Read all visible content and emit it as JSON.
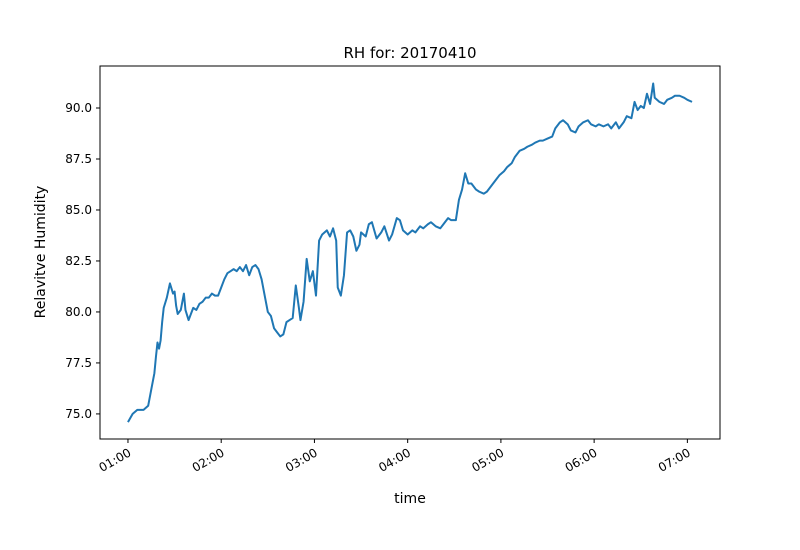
{
  "chart_data": {
    "type": "line",
    "title": "RH for: 20170410",
    "xlabel": "time",
    "ylabel": "Relavitve Humidity",
    "xlim": [
      "00:42",
      "07:21"
    ],
    "xticks": [
      "01:00",
      "02:00",
      "03:00",
      "04:00",
      "05:00",
      "06:00",
      "07:00"
    ],
    "ylim": [
      73.77,
      92.06
    ],
    "yticks": [
      {
        "value": 75,
        "label": "75.0"
      },
      77.5,
      {
        "value": 80,
        "label": "80.0"
      },
      82.5,
      {
        "value": 85,
        "label": "85.0"
      },
      87.5,
      {
        "value": 90,
        "label": "90.0"
      }
    ],
    "grid": false,
    "series": [
      {
        "name": "RH",
        "color": "#1f77b4",
        "x": [
          "01:00",
          "01:03",
          "01:06",
          "01:10",
          "01:13",
          "01:15",
          "01:17",
          "01:18",
          "01:19",
          "01:20",
          "01:21",
          "01:22",
          "01:23",
          "01:25",
          "01:27",
          "01:29",
          "01:30",
          "01:31",
          "01:32",
          "01:34",
          "01:36",
          "01:37",
          "01:39",
          "01:40",
          "01:42",
          "01:44",
          "01:46",
          "01:48",
          "01:50",
          "01:52",
          "01:54",
          "01:56",
          "01:58",
          "02:00",
          "02:02",
          "02:04",
          "02:06",
          "02:08",
          "02:10",
          "02:12",
          "02:14",
          "02:16",
          "02:18",
          "02:20",
          "02:22",
          "02:24",
          "02:26",
          "02:28",
          "02:30",
          "02:32",
          "02:34",
          "02:36",
          "02:38",
          "02:40",
          "02:42",
          "02:44",
          "02:46",
          "02:48",
          "02:50",
          "02:51",
          "02:53",
          "02:55",
          "02:57",
          "02:59",
          "03:01",
          "03:03",
          "03:05",
          "03:08",
          "03:10",
          "03:12",
          "03:14",
          "03:15",
          "03:17",
          "03:19",
          "03:21",
          "03:23",
          "03:25",
          "03:27",
          "03:29",
          "03:30",
          "03:33",
          "03:35",
          "03:37",
          "03:40",
          "03:43",
          "03:45",
          "03:48",
          "03:50",
          "03:53",
          "03:55",
          "03:57",
          "04:00",
          "04:03",
          "04:05",
          "04:08",
          "04:10",
          "04:13",
          "04:15",
          "04:18",
          "04:21",
          "04:23",
          "04:26",
          "04:28",
          "04:31",
          "04:33",
          "04:35",
          "04:37",
          "04:39",
          "04:41",
          "04:44",
          "04:46",
          "04:49",
          "04:51",
          "04:54",
          "04:57",
          "04:59",
          "05:02",
          "05:04",
          "05:07",
          "05:09",
          "05:12",
          "05:15",
          "05:17",
          "05:20",
          "05:22",
          "05:25",
          "05:27",
          "05:30",
          "05:33",
          "05:35",
          "05:38",
          "05:40",
          "05:43",
          "05:45",
          "05:48",
          "05:50",
          "05:53",
          "05:56",
          "05:58",
          "06:01",
          "06:03",
          "06:06",
          "06:09",
          "06:11",
          "06:14",
          "06:16",
          "06:19",
          "06:21",
          "06:24",
          "06:26",
          "06:28",
          "06:30",
          "06:32",
          "06:34",
          "06:36",
          "06:38",
          "06:39",
          "06:42",
          "06:45",
          "06:47",
          "06:50",
          "06:52",
          "06:55",
          "06:58",
          "07:00",
          "07:03"
        ],
        "values": [
          74.6,
          75.0,
          75.2,
          75.2,
          75.4,
          76.2,
          77.0,
          77.8,
          78.5,
          78.2,
          78.6,
          79.5,
          80.2,
          80.7,
          81.4,
          80.9,
          81.0,
          80.3,
          79.9,
          80.1,
          80.9,
          80.1,
          79.6,
          79.8,
          80.2,
          80.1,
          80.4,
          80.5,
          80.7,
          80.7,
          80.9,
          80.8,
          80.8,
          81.2,
          81.6,
          81.9,
          82.0,
          82.1,
          82.0,
          82.2,
          82.0,
          82.3,
          81.8,
          82.2,
          82.3,
          82.1,
          81.6,
          80.8,
          80.0,
          79.8,
          79.2,
          79.0,
          78.8,
          78.9,
          79.5,
          79.6,
          79.7,
          81.3,
          80.2,
          79.6,
          80.5,
          82.6,
          81.5,
          82.0,
          80.8,
          83.5,
          83.8,
          84.0,
          83.7,
          84.1,
          83.5,
          81.2,
          80.8,
          81.8,
          83.9,
          84.0,
          83.7,
          83.0,
          83.3,
          83.9,
          83.7,
          84.3,
          84.4,
          83.6,
          83.9,
          84.2,
          83.5,
          83.8,
          84.6,
          84.5,
          84.0,
          83.8,
          84.0,
          83.9,
          84.2,
          84.1,
          84.3,
          84.4,
          84.2,
          84.1,
          84.3,
          84.6,
          84.5,
          84.5,
          85.5,
          86.0,
          86.8,
          86.3,
          86.3,
          86.0,
          85.9,
          85.8,
          85.9,
          86.2,
          86.5,
          86.7,
          86.9,
          87.1,
          87.3,
          87.6,
          87.9,
          88.0,
          88.1,
          88.2,
          88.3,
          88.4,
          88.4,
          88.5,
          88.6,
          89.0,
          89.3,
          89.4,
          89.2,
          88.9,
          88.8,
          89.1,
          89.3,
          89.4,
          89.2,
          89.1,
          89.2,
          89.1,
          89.2,
          89.0,
          89.3,
          89.0,
          89.3,
          89.6,
          89.5,
          90.3,
          89.9,
          90.1,
          90.0,
          90.7,
          90.2,
          91.2,
          90.5,
          90.3,
          90.2,
          90.4,
          90.5,
          90.6,
          90.6,
          90.5,
          90.4,
          90.3
        ]
      }
    ]
  }
}
